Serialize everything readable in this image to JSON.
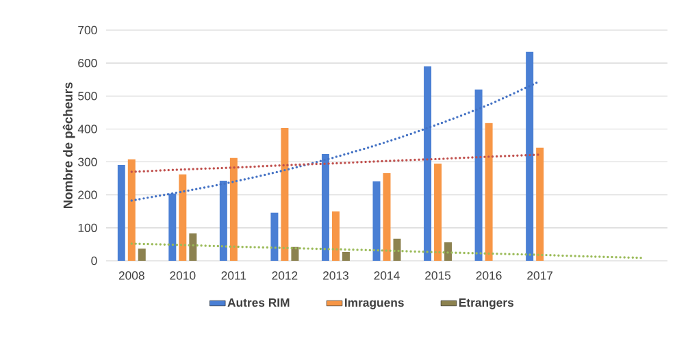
{
  "chart_data": {
    "type": "bar",
    "ylabel": "Nombre de pêcheurs",
    "categories": [
      "2008",
      "2010",
      "2011",
      "2012",
      "2013",
      "2014",
      "2015",
      "2016",
      "2017",
      null,
      null
    ],
    "series": [
      {
        "name": "Autres RIM",
        "color": "#4a7fd4",
        "values": [
          291,
          204,
          243,
          146,
          324,
          241,
          590,
          520,
          634,
          null,
          null
        ]
      },
      {
        "name": "Imraguens",
        "color": "#f79646",
        "values": [
          308,
          262,
          312,
          403,
          150,
          266,
          295,
          418,
          343,
          null,
          null
        ]
      },
      {
        "name": "Etrangers",
        "color": "#8c8250",
        "values": [
          37,
          83,
          null,
          42,
          27,
          67,
          56,
          null,
          null,
          null,
          null
        ]
      },
      {
        "type": "line",
        "line_style": "dotted",
        "color": "#4472c4",
        "values": [
          183,
          210,
          240,
          275,
          315,
          361,
          414,
          474,
          545,
          null,
          null
        ]
      },
      {
        "type": "line",
        "line_style": "dotted",
        "color": "#c0504d",
        "values": [
          270,
          277,
          283,
          290,
          296,
          303,
          309,
          316,
          322,
          null,
          null
        ]
      },
      {
        "type": "line",
        "line_style": "dotted",
        "color": "#9bbb59",
        "values": [
          52,
          48,
          43,
          39,
          35,
          31,
          26,
          22,
          18,
          13,
          9
        ]
      }
    ],
    "ylim": [
      0,
      700
    ],
    "yticks": [
      0,
      100,
      200,
      300,
      400,
      500,
      600,
      700
    ],
    "grid": "y",
    "legend": "bottom"
  }
}
